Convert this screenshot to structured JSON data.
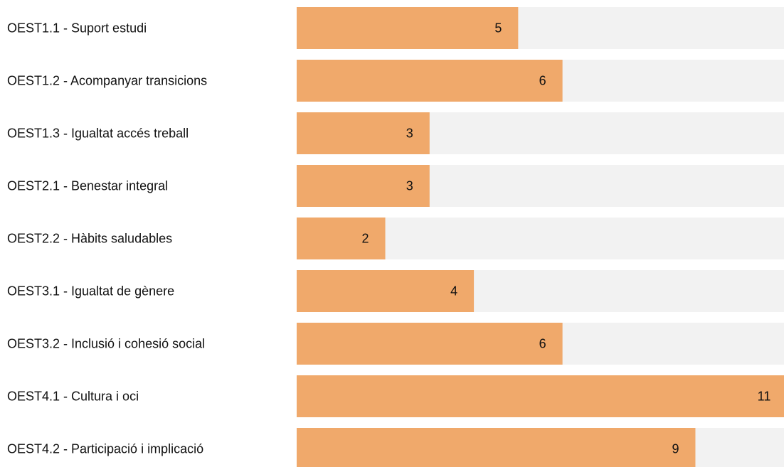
{
  "chart_data": {
    "type": "bar",
    "orientation": "horizontal",
    "categories": [
      "OEST1.1 - Suport estudi",
      "OEST1.2 - Acompanyar transicions",
      "OEST1.3 - Igualtat accés treball",
      "OEST2.1 - Benestar integral",
      "OEST2.2 - Hàbits saludables",
      "OEST3.1 - Igualtat de gènere",
      "OEST3.2 - Inclusió i cohesió social",
      "OEST4.1 - Cultura i oci",
      "OEST4.2 - Participació i implicació"
    ],
    "values": [
      5,
      6,
      3,
      3,
      2,
      4,
      6,
      11,
      9
    ],
    "color": "#f0a96b",
    "track_color": "#f2f2f2",
    "xlim": [
      0,
      11
    ]
  }
}
